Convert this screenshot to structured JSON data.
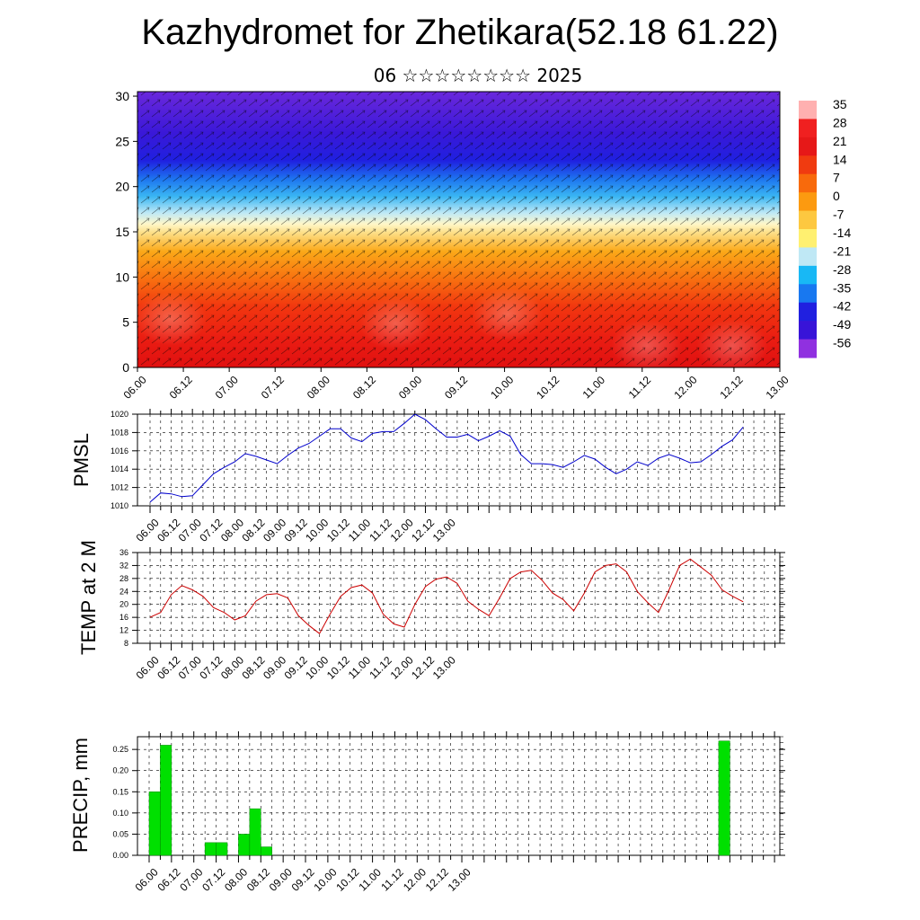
{
  "title": "Kazhydromet for Zhetikara(52.18 61.22)",
  "subtitle": "06 ☆☆☆☆☆☆☆☆ 2025",
  "time_labels": [
    "06.00",
    "06.12",
    "07.00",
    "07.12",
    "08.00",
    "08.12",
    "09.00",
    "09.12",
    "10.00",
    "10.12",
    "11.00",
    "11.12",
    "12.00",
    "12.12",
    "13.00"
  ],
  "chart_data": [
    {
      "type": "heatmap",
      "title": "",
      "xlabel": "",
      "ylabel": "",
      "x": [
        "06.00",
        "06.12",
        "07.00",
        "07.12",
        "08.00",
        "08.12",
        "09.00",
        "09.12",
        "10.00",
        "10.12",
        "11.00",
        "11.12",
        "12.00",
        "12.12",
        "13.00"
      ],
      "y_ticks": [
        0,
        5,
        10,
        15,
        20,
        25,
        30
      ],
      "ylim": [
        0,
        30.5
      ],
      "colorbar_labels": [
        "35",
        "28",
        "21",
        "14",
        "7",
        "0",
        "-7",
        "-14",
        "-21",
        "-28",
        "-35",
        "-42",
        "-49",
        "-56"
      ],
      "colorbar_colors": [
        "#ffb0b0",
        "#f02020",
        "#e61818",
        "#f03b10",
        "#f86a0c",
        "#fc9a10",
        "#fdc840",
        "#fff070",
        "#bfe8f5",
        "#18b8f5",
        "#1878f0",
        "#2020e0",
        "#3814d8",
        "#9030e0"
      ],
      "profile_description_values": [
        {
          "height": 0,
          "value": 28
        },
        {
          "height": 5,
          "value": 18
        },
        {
          "height": 10,
          "value": 5
        },
        {
          "height": 15,
          "value": -10
        },
        {
          "height": 20,
          "value": -40
        },
        {
          "height": 25,
          "value": -56
        },
        {
          "height": 30,
          "value": -56
        }
      ]
    },
    {
      "type": "line",
      "title": "",
      "xlabel": "",
      "ylabel": "PMSL",
      "ylim": [
        1010,
        1020
      ],
      "y_ticks": [
        1010,
        1012,
        1014,
        1016,
        1018,
        1020
      ],
      "series": [
        {
          "color": "#0000cc",
          "x": [
            0,
            1,
            2,
            3,
            4,
            5,
            6,
            7,
            8,
            9,
            10,
            11,
            12,
            13,
            14,
            15,
            16,
            17,
            18,
            19,
            20,
            21,
            22,
            23,
            24,
            25,
            26,
            27,
            28,
            29,
            30,
            31,
            32,
            33,
            34,
            35,
            36,
            37,
            38,
            39,
            40,
            41,
            42,
            43,
            44,
            45,
            46,
            47,
            48,
            49,
            50,
            51,
            52,
            53,
            54,
            55,
            56
          ],
          "values": [
            1010.4,
            1011.4,
            1011.3,
            1011.0,
            1011.1,
            1012.3,
            1013.5,
            1014.2,
            1014.8,
            1015.7,
            1015.4,
            1015.0,
            1014.6,
            1015.5,
            1016.3,
            1016.8,
            1017.6,
            1018.4,
            1018.4,
            1017.4,
            1017.0,
            1017.9,
            1018.1,
            1018.1,
            1019.0,
            1020.0,
            1019.4,
            1018.4,
            1017.5,
            1017.5,
            1017.8,
            1017.1,
            1017.6,
            1018.2,
            1017.6,
            1015.6,
            1014.6,
            1014.6,
            1014.5,
            1014.2,
            1014.8,
            1015.5,
            1015.1,
            1014.2,
            1013.5,
            1014.0,
            1014.8,
            1014.4,
            1015.2,
            1015.6,
            1015.2,
            1014.7,
            1014.8,
            1015.6,
            1016.5,
            1017.2,
            1018.6
          ]
        }
      ]
    },
    {
      "type": "line",
      "title": "",
      "xlabel": "",
      "ylabel": "TEMP at 2 M",
      "ylim": [
        8,
        36
      ],
      "y_ticks": [
        8,
        12,
        16,
        20,
        24,
        28,
        32,
        36
      ],
      "series": [
        {
          "color": "#cc0000",
          "x": [
            0,
            1,
            2,
            3,
            4,
            5,
            6,
            7,
            8,
            9,
            10,
            11,
            12,
            13,
            14,
            15,
            16,
            17,
            18,
            19,
            20,
            21,
            22,
            23,
            24,
            25,
            26,
            27,
            28,
            29,
            30,
            31,
            32,
            33,
            34,
            35,
            36,
            37,
            38,
            39,
            40,
            41,
            42,
            43,
            44,
            45,
            46,
            47,
            48,
            49,
            50,
            51,
            52,
            53,
            54,
            55,
            56
          ],
          "values": [
            16,
            17.5,
            23,
            25.8,
            24.5,
            22.5,
            19,
            17.5,
            15.2,
            16.5,
            21,
            23,
            23.3,
            22,
            16.5,
            13.5,
            11,
            17,
            22.5,
            25.2,
            26,
            23.5,
            17,
            14,
            13,
            20,
            25.5,
            27.8,
            28.5,
            26.5,
            21,
            18.5,
            16.5,
            22,
            28,
            30,
            30.5,
            27.5,
            23.5,
            21.5,
            18,
            23.5,
            30,
            32,
            32.5,
            30,
            24,
            20.5,
            17.5,
            24.5,
            32,
            34,
            31.5,
            29,
            24.5,
            22.5,
            20.8
          ]
        }
      ]
    },
    {
      "type": "bar",
      "title": "",
      "xlabel": "",
      "ylabel": "PRECIP, mm",
      "ylim": [
        0,
        0.28
      ],
      "y_ticks": [
        "0.00",
        "0.05",
        "0.10",
        "0.15",
        "0.20",
        "0.25"
      ],
      "bar_color": "#00e000",
      "bars": [
        {
          "x": 1,
          "value": 0.15
        },
        {
          "x": 2,
          "value": 0.26
        },
        {
          "x": 6,
          "value": 0.03
        },
        {
          "x": 7,
          "value": 0.03
        },
        {
          "x": 9,
          "value": 0.05
        },
        {
          "x": 10,
          "value": 0.11
        },
        {
          "x": 11,
          "value": 0.02
        },
        {
          "x": 52,
          "value": 0.27
        }
      ]
    }
  ]
}
